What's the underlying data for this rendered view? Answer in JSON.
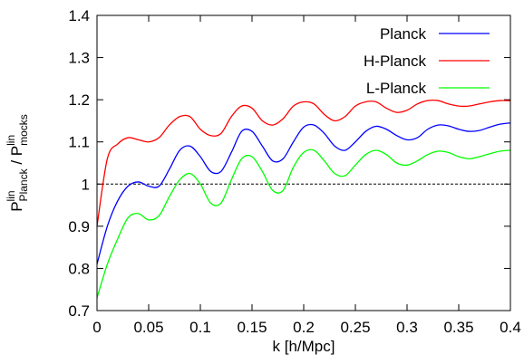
{
  "chart_data": {
    "type": "line",
    "xlabel": "k [h/Mpc]",
    "ylabel": [
      "P",
      "lin",
      "Planck",
      " / P",
      "lin",
      "mocks"
    ],
    "x": [
      0,
      0.01,
      0.02,
      0.03,
      0.04,
      0.05,
      0.06,
      0.07,
      0.08,
      0.09,
      0.1,
      0.11,
      0.12,
      0.13,
      0.14,
      0.15,
      0.16,
      0.17,
      0.18,
      0.19,
      0.2,
      0.21,
      0.22,
      0.23,
      0.24,
      0.25,
      0.26,
      0.27,
      0.28,
      0.29,
      0.3,
      0.31,
      0.32,
      0.33,
      0.34,
      0.35,
      0.36,
      0.37,
      0.38,
      0.39,
      0.4
    ],
    "series": [
      {
        "name": "Planck",
        "color": "#0000ff",
        "values": [
          0.81,
          0.9,
          0.96,
          0.995,
          1.005,
          0.995,
          0.995,
          1.035,
          1.08,
          1.09,
          1.065,
          1.03,
          1.03,
          1.075,
          1.125,
          1.125,
          1.09,
          1.055,
          1.06,
          1.1,
          1.135,
          1.14,
          1.12,
          1.09,
          1.08,
          1.1,
          1.125,
          1.137,
          1.13,
          1.115,
          1.105,
          1.11,
          1.13,
          1.14,
          1.138,
          1.13,
          1.125,
          1.127,
          1.135,
          1.142,
          1.145
        ]
      },
      {
        "name": "H-Planck",
        "color": "#ff0000",
        "values": [
          0.9,
          1.06,
          1.095,
          1.11,
          1.105,
          1.1,
          1.11,
          1.14,
          1.16,
          1.16,
          1.13,
          1.115,
          1.12,
          1.16,
          1.185,
          1.18,
          1.15,
          1.14,
          1.155,
          1.185,
          1.195,
          1.19,
          1.165,
          1.15,
          1.16,
          1.185,
          1.195,
          1.195,
          1.18,
          1.17,
          1.175,
          1.19,
          1.198,
          1.198,
          1.19,
          1.185,
          1.185,
          1.19,
          1.195,
          1.198,
          1.198
        ]
      },
      {
        "name": "L-Planck",
        "color": "#00ff00",
        "values": [
          0.73,
          0.81,
          0.87,
          0.92,
          0.93,
          0.915,
          0.925,
          0.97,
          1.01,
          1.025,
          1.0,
          0.955,
          0.955,
          1.01,
          1.06,
          1.065,
          1.03,
          0.985,
          0.985,
          1.04,
          1.075,
          1.08,
          1.055,
          1.025,
          1.02,
          1.045,
          1.07,
          1.08,
          1.07,
          1.05,
          1.045,
          1.055,
          1.07,
          1.078,
          1.075,
          1.065,
          1.06,
          1.065,
          1.072,
          1.078,
          1.08
        ]
      }
    ],
    "hline": 1,
    "xlim": [
      0,
      0.4
    ],
    "ylim": [
      0.7,
      1.4
    ],
    "xticks": [
      0,
      0.05,
      0.1,
      0.15,
      0.2,
      0.25,
      0.3,
      0.35,
      0.4
    ],
    "yticks": [
      0.7,
      0.8,
      0.9,
      1,
      1.1,
      1.2,
      1.3,
      1.4
    ],
    "legend": "top-right"
  }
}
